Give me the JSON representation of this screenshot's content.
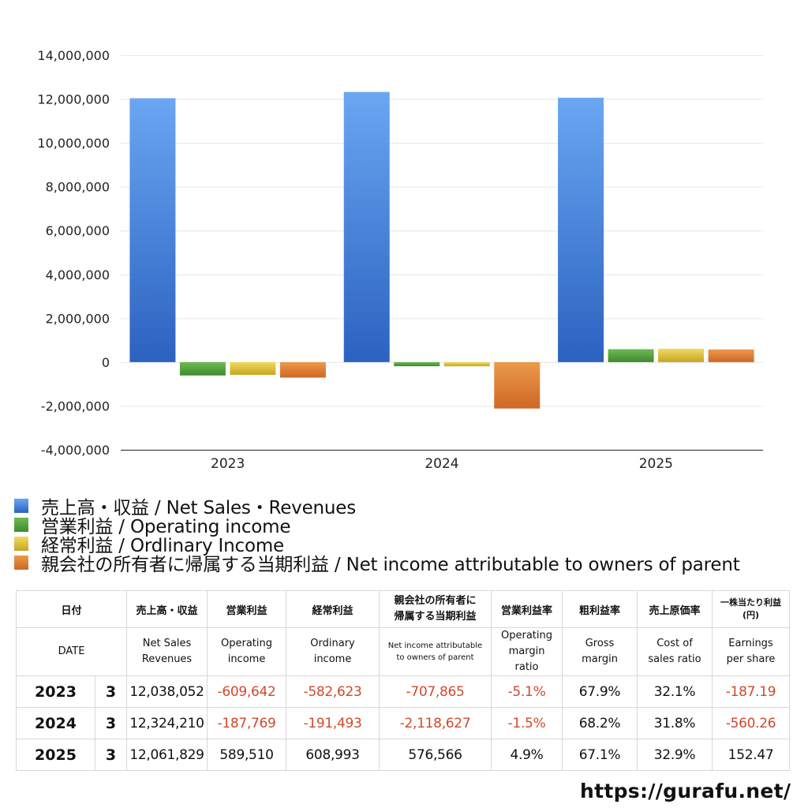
{
  "chart_data": {
    "type": "bar",
    "categories": [
      "2023",
      "2024",
      "2025"
    ],
    "series": [
      {
        "name": "売上高・収益 / Net Sales・Revenues",
        "values": [
          12038052,
          12324210,
          12061829
        ],
        "color": "#3f7fd8"
      },
      {
        "name": "営業利益 / Operating income",
        "values": [
          -609642,
          -187769,
          589510
        ],
        "color": "#4f9a3a"
      },
      {
        "name": "経常利益 / Ordlinary Income",
        "values": [
          -582623,
          -191493,
          608993
        ],
        "color": "#d4b830"
      },
      {
        "name": "親会社の所有者に帰属する当期利益 / Net income attributable to owners of parent",
        "values": [
          -707865,
          -2118627,
          576566
        ],
        "color": "#dd7a30"
      }
    ],
    "ylim": [
      -4000000,
      14000000
    ],
    "yticks": [
      "14,000,000",
      "12,000,000",
      "10,000,000",
      "8,000,000",
      "6,000,000",
      "4,000,000",
      "2,000,000",
      "0",
      "-2,000,000",
      "-4,000,000"
    ],
    "ytick_values": [
      14000000,
      12000000,
      10000000,
      8000000,
      6000000,
      4000000,
      2000000,
      0,
      -2000000,
      -4000000
    ],
    "grid": true,
    "legend_position": "bottom-left",
    "title": "",
    "xlabel": "",
    "ylabel": ""
  },
  "legend": [
    {
      "label": "売上高・収益 / Net Sales・Revenues",
      "color": "#3f7fd8"
    },
    {
      "label": "営業利益 / Operating income",
      "color": "#4f9a3a"
    },
    {
      "label": "経常利益 / Ordlinary Income",
      "color": "#d4b830"
    },
    {
      "label": "親会社の所有者に帰属する当期利益 / Net income attributable to owners of parent",
      "color": "#dd7a30"
    }
  ],
  "table": {
    "header_jp": {
      "date": "日付",
      "sales": "売上高・収益",
      "operating": "営業利益",
      "ordinary": "経常利益",
      "net_1": "親会社の所有者に",
      "net_2": "帰属する当期利益",
      "op_margin": "営業利益率",
      "gross": "粗利益率",
      "cost": "売上原価率",
      "eps_1": "一株当たり利益",
      "eps_2": "(円)"
    },
    "header_en": {
      "date": "DATE",
      "sales_1": "Net Sales",
      "sales_2": "Revenues",
      "operating_1": "Operating",
      "operating_2": "income",
      "ordinary_1": "Ordinary",
      "ordinary_2": "income",
      "net_1": "Net income attributable",
      "net_2": "to owners of parent",
      "op_margin_1": "Operating",
      "op_margin_2": "margin",
      "op_margin_3": "ratio",
      "gross_1": "Gross",
      "gross_2": "margin",
      "cost_1": "Cost of",
      "cost_2": "sales ratio",
      "eps_1": "Earnings",
      "eps_2": "per share"
    },
    "rows": [
      {
        "year": "2023",
        "month": "3",
        "sales": "12,038,052",
        "operating": "-609,642",
        "ordinary": "-582,623",
        "net": "-707,865",
        "op_margin": "-5.1%",
        "gross": "67.9%",
        "cost": "32.1%",
        "eps": "-187.19"
      },
      {
        "year": "2024",
        "month": "3",
        "sales": "12,324,210",
        "operating": "-187,769",
        "ordinary": "-191,493",
        "net": "-2,118,627",
        "op_margin": "-1.5%",
        "gross": "68.2%",
        "cost": "31.8%",
        "eps": "-560.26"
      },
      {
        "year": "2025",
        "month": "3",
        "sales": "12,061,829",
        "operating": "589,510",
        "ordinary": "608,993",
        "net": "576,566",
        "op_margin": "4.9%",
        "gross": "67.1%",
        "cost": "32.9%",
        "eps": "152.47"
      }
    ]
  },
  "footer": {
    "url": "https://gurafu.net/"
  }
}
